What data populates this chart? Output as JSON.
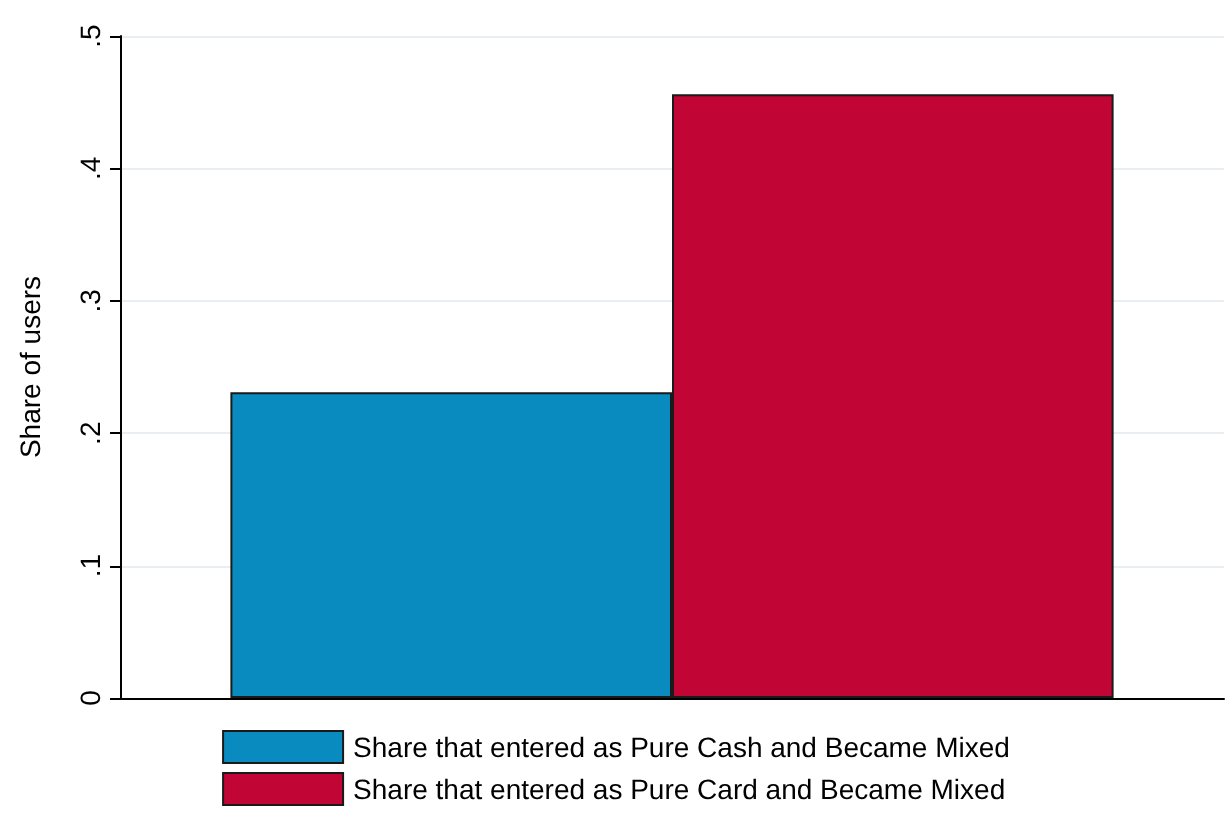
{
  "chart_data": {
    "type": "bar",
    "ylabel": "Share of users",
    "categories": [
      null
    ],
    "series": [
      {
        "name": "Share that entered as Pure Cash and Became Mixed",
        "color": "#0a8bbf",
        "values": [
          0.231
        ]
      },
      {
        "name": "Share that entered as Pure Card and Became Mixed",
        "color": "#c10534",
        "values": [
          0.456
        ]
      }
    ],
    "ylim": [
      0,
      0.5
    ],
    "yticks": [
      {
        "value": 0,
        "label": "0"
      },
      {
        "value": 0.1,
        "label": ".1"
      },
      {
        "value": 0.2,
        "label": ".2"
      },
      {
        "value": 0.3,
        "label": ".3"
      },
      {
        "value": 0.4,
        "label": ".4"
      },
      {
        "value": 0.5,
        "label": ".5"
      }
    ],
    "grid": "y",
    "legend": "bottom"
  }
}
